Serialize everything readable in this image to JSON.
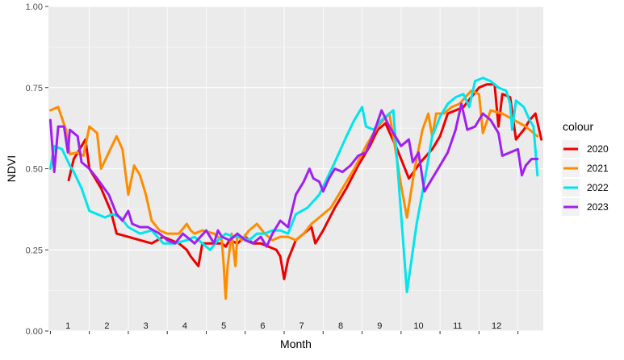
{
  "chart_data": {
    "type": "line",
    "xlabel": "Month",
    "ylabel": "NDVI",
    "xlim": [
      0,
      12
    ],
    "ylim": [
      0,
      1
    ],
    "y_ticks": [
      "0.00",
      "0.25",
      "0.50",
      "0.75",
      "1.00"
    ],
    "x_tick_labels": [
      "1",
      "2",
      "3",
      "4",
      "5",
      "6",
      "7",
      "8",
      "9",
      "10",
      "11",
      "12"
    ],
    "grid": true,
    "legend": {
      "title": "colour",
      "position": "right"
    },
    "series": [
      {
        "name": "2020",
        "color": "#ee0000",
        "points": [
          [
            0.47,
            0.465
          ],
          [
            0.6,
            0.53
          ],
          [
            0.9,
            0.59
          ],
          [
            1.0,
            0.5
          ],
          [
            1.3,
            0.44
          ],
          [
            1.55,
            0.37
          ],
          [
            1.7,
            0.3
          ],
          [
            2.0,
            0.29
          ],
          [
            2.3,
            0.28
          ],
          [
            2.6,
            0.27
          ],
          [
            2.9,
            0.29
          ],
          [
            3.1,
            0.28
          ],
          [
            3.3,
            0.27
          ],
          [
            3.5,
            0.25
          ],
          [
            3.6,
            0.23
          ],
          [
            3.8,
            0.2
          ],
          [
            3.9,
            0.27
          ],
          [
            4.1,
            0.27
          ],
          [
            4.4,
            0.27
          ],
          [
            4.5,
            0.26
          ],
          [
            4.6,
            0.28
          ],
          [
            4.8,
            0.27
          ],
          [
            5.0,
            0.29
          ],
          [
            5.2,
            0.27
          ],
          [
            5.4,
            0.27
          ],
          [
            5.6,
            0.26
          ],
          [
            5.8,
            0.25
          ],
          [
            5.9,
            0.23
          ],
          [
            6.0,
            0.16
          ],
          [
            6.1,
            0.22
          ],
          [
            6.3,
            0.28
          ],
          [
            6.5,
            0.3
          ],
          [
            6.7,
            0.32
          ],
          [
            6.8,
            0.27
          ],
          [
            7.0,
            0.31
          ],
          [
            7.3,
            0.38
          ],
          [
            7.6,
            0.44
          ],
          [
            7.9,
            0.51
          ],
          [
            8.2,
            0.57
          ],
          [
            8.4,
            0.62
          ],
          [
            8.6,
            0.64
          ],
          [
            8.9,
            0.56
          ],
          [
            9.2,
            0.47
          ],
          [
            9.5,
            0.52
          ],
          [
            9.8,
            0.56
          ],
          [
            10.0,
            0.6
          ],
          [
            10.2,
            0.67
          ],
          [
            10.4,
            0.68
          ],
          [
            10.6,
            0.69
          ],
          [
            10.8,
            0.72
          ],
          [
            11.0,
            0.75
          ],
          [
            11.2,
            0.76
          ],
          [
            11.4,
            0.76
          ],
          [
            11.5,
            0.63
          ],
          [
            11.6,
            0.73
          ],
          [
            11.8,
            0.72
          ],
          [
            11.95,
            0.59
          ],
          [
            12.15,
            0.62
          ],
          [
            12.3,
            0.65
          ],
          [
            12.45,
            0.67
          ],
          [
            12.6,
            0.59
          ]
        ]
      },
      {
        "name": "2021",
        "color": "#ff8c00",
        "points": [
          [
            0.0,
            0.68
          ],
          [
            0.2,
            0.69
          ],
          [
            0.4,
            0.62
          ],
          [
            0.5,
            0.545
          ],
          [
            0.7,
            0.55
          ],
          [
            0.85,
            0.54
          ],
          [
            1.0,
            0.63
          ],
          [
            1.2,
            0.61
          ],
          [
            1.3,
            0.5
          ],
          [
            1.5,
            0.55
          ],
          [
            1.7,
            0.6
          ],
          [
            1.85,
            0.56
          ],
          [
            2.0,
            0.42
          ],
          [
            2.15,
            0.51
          ],
          [
            2.3,
            0.48
          ],
          [
            2.45,
            0.42
          ],
          [
            2.6,
            0.34
          ],
          [
            2.8,
            0.31
          ],
          [
            3.0,
            0.3
          ],
          [
            3.3,
            0.3
          ],
          [
            3.5,
            0.33
          ],
          [
            3.6,
            0.31
          ],
          [
            3.7,
            0.3
          ],
          [
            3.9,
            0.31
          ],
          [
            4.2,
            0.3
          ],
          [
            4.4,
            0.28
          ],
          [
            4.45,
            0.2
          ],
          [
            4.5,
            0.1
          ],
          [
            4.55,
            0.2
          ],
          [
            4.65,
            0.3
          ],
          [
            4.75,
            0.2
          ],
          [
            4.8,
            0.3
          ],
          [
            4.9,
            0.28
          ],
          [
            5.1,
            0.31
          ],
          [
            5.3,
            0.33
          ],
          [
            5.5,
            0.3
          ],
          [
            5.7,
            0.28
          ],
          [
            5.9,
            0.29
          ],
          [
            6.1,
            0.29
          ],
          [
            6.3,
            0.28
          ],
          [
            6.5,
            0.3
          ],
          [
            6.7,
            0.33
          ],
          [
            6.9,
            0.35
          ],
          [
            7.2,
            0.38
          ],
          [
            7.5,
            0.44
          ],
          [
            7.8,
            0.5
          ],
          [
            8.1,
            0.57
          ],
          [
            8.4,
            0.63
          ],
          [
            8.7,
            0.67
          ],
          [
            8.8,
            0.6
          ],
          [
            9.0,
            0.45
          ],
          [
            9.15,
            0.35
          ],
          [
            9.35,
            0.5
          ],
          [
            9.55,
            0.62
          ],
          [
            9.7,
            0.67
          ],
          [
            9.8,
            0.6
          ],
          [
            9.9,
            0.67
          ],
          [
            10.1,
            0.67
          ],
          [
            10.3,
            0.69
          ],
          [
            10.5,
            0.7
          ],
          [
            10.8,
            0.74
          ],
          [
            11.0,
            0.73
          ],
          [
            11.1,
            0.61
          ],
          [
            11.3,
            0.68
          ],
          [
            11.6,
            0.67
          ],
          [
            11.9,
            0.65
          ],
          [
            12.2,
            0.63
          ],
          [
            12.5,
            0.6
          ]
        ]
      },
      {
        "name": "2022",
        "color": "#00e5ee",
        "points": [
          [
            0.0,
            0.5
          ],
          [
            0.1,
            0.57
          ],
          [
            0.3,
            0.56
          ],
          [
            0.5,
            0.51
          ],
          [
            0.6,
            0.49
          ],
          [
            0.8,
            0.44
          ],
          [
            1.0,
            0.37
          ],
          [
            1.2,
            0.36
          ],
          [
            1.4,
            0.35
          ],
          [
            1.6,
            0.36
          ],
          [
            1.8,
            0.35
          ],
          [
            2.0,
            0.32
          ],
          [
            2.3,
            0.3
          ],
          [
            2.6,
            0.31
          ],
          [
            2.9,
            0.27
          ],
          [
            3.2,
            0.27
          ],
          [
            3.5,
            0.28
          ],
          [
            3.7,
            0.29
          ],
          [
            3.9,
            0.27
          ],
          [
            4.1,
            0.25
          ],
          [
            4.3,
            0.28
          ],
          [
            4.5,
            0.3
          ],
          [
            4.7,
            0.29
          ],
          [
            4.9,
            0.29
          ],
          [
            5.1,
            0.28
          ],
          [
            5.3,
            0.3
          ],
          [
            5.5,
            0.3
          ],
          [
            5.7,
            0.31
          ],
          [
            5.9,
            0.31
          ],
          [
            6.1,
            0.3
          ],
          [
            6.3,
            0.36
          ],
          [
            6.6,
            0.38
          ],
          [
            6.9,
            0.42
          ],
          [
            7.1,
            0.47
          ],
          [
            7.3,
            0.52
          ],
          [
            7.6,
            0.6
          ],
          [
            7.8,
            0.65
          ],
          [
            8.0,
            0.69
          ],
          [
            8.1,
            0.63
          ],
          [
            8.3,
            0.62
          ],
          [
            8.5,
            0.65
          ],
          [
            8.8,
            0.68
          ],
          [
            9.15,
            0.12
          ],
          [
            9.4,
            0.33
          ],
          [
            9.6,
            0.46
          ],
          [
            9.8,
            0.6
          ],
          [
            10.0,
            0.66
          ],
          [
            10.2,
            0.7
          ],
          [
            10.4,
            0.72
          ],
          [
            10.6,
            0.73
          ],
          [
            10.75,
            0.69
          ],
          [
            10.9,
            0.77
          ],
          [
            11.1,
            0.78
          ],
          [
            11.3,
            0.77
          ],
          [
            11.5,
            0.75
          ],
          [
            11.7,
            0.74
          ],
          [
            11.8,
            0.7
          ],
          [
            11.85,
            0.62
          ],
          [
            11.95,
            0.71
          ],
          [
            12.15,
            0.69
          ],
          [
            12.3,
            0.65
          ],
          [
            12.4,
            0.63
          ],
          [
            12.5,
            0.48
          ]
        ]
      },
      {
        "name": "2023",
        "color": "#a020f0",
        "points": [
          [
            0.0,
            0.65
          ],
          [
            0.1,
            0.49
          ],
          [
            0.2,
            0.63
          ],
          [
            0.35,
            0.63
          ],
          [
            0.45,
            0.55
          ],
          [
            0.5,
            0.62
          ],
          [
            0.7,
            0.6
          ],
          [
            0.8,
            0.52
          ],
          [
            1.0,
            0.5
          ],
          [
            1.2,
            0.47
          ],
          [
            1.5,
            0.42
          ],
          [
            1.7,
            0.36
          ],
          [
            1.85,
            0.34
          ],
          [
            2.0,
            0.37
          ],
          [
            2.1,
            0.33
          ],
          [
            2.3,
            0.32
          ],
          [
            2.5,
            0.32
          ],
          [
            2.8,
            0.3
          ],
          [
            3.0,
            0.28
          ],
          [
            3.2,
            0.27
          ],
          [
            3.4,
            0.3
          ],
          [
            3.5,
            0.29
          ],
          [
            3.7,
            0.27
          ],
          [
            3.85,
            0.29
          ],
          [
            4.0,
            0.31
          ],
          [
            4.2,
            0.27
          ],
          [
            4.3,
            0.31
          ],
          [
            4.4,
            0.29
          ],
          [
            4.6,
            0.28
          ],
          [
            4.8,
            0.3
          ],
          [
            5.0,
            0.28
          ],
          [
            5.2,
            0.27
          ],
          [
            5.4,
            0.29
          ],
          [
            5.55,
            0.26
          ],
          [
            5.7,
            0.3
          ],
          [
            5.9,
            0.34
          ],
          [
            6.1,
            0.32
          ],
          [
            6.3,
            0.42
          ],
          [
            6.5,
            0.46
          ],
          [
            6.65,
            0.5
          ],
          [
            6.75,
            0.47
          ],
          [
            6.9,
            0.46
          ],
          [
            7.0,
            0.43
          ],
          [
            7.15,
            0.47
          ],
          [
            7.3,
            0.5
          ],
          [
            7.5,
            0.49
          ],
          [
            7.7,
            0.51
          ],
          [
            7.9,
            0.54
          ],
          [
            8.1,
            0.55
          ],
          [
            8.3,
            0.61
          ],
          [
            8.5,
            0.68
          ],
          [
            8.7,
            0.63
          ],
          [
            8.9,
            0.59
          ],
          [
            9.0,
            0.57
          ],
          [
            9.2,
            0.59
          ],
          [
            9.3,
            0.52
          ],
          [
            9.45,
            0.55
          ],
          [
            9.6,
            0.43
          ],
          [
            9.8,
            0.47
          ],
          [
            10.0,
            0.51
          ],
          [
            10.2,
            0.55
          ],
          [
            10.4,
            0.62
          ],
          [
            10.55,
            0.7
          ],
          [
            10.7,
            0.62
          ],
          [
            10.9,
            0.63
          ],
          [
            11.1,
            0.67
          ],
          [
            11.3,
            0.65
          ],
          [
            11.5,
            0.61
          ],
          [
            11.6,
            0.54
          ],
          [
            11.8,
            0.55
          ],
          [
            12.0,
            0.56
          ],
          [
            12.1,
            0.48
          ],
          [
            12.2,
            0.51
          ],
          [
            12.35,
            0.53
          ],
          [
            12.5,
            0.53
          ]
        ]
      }
    ]
  }
}
